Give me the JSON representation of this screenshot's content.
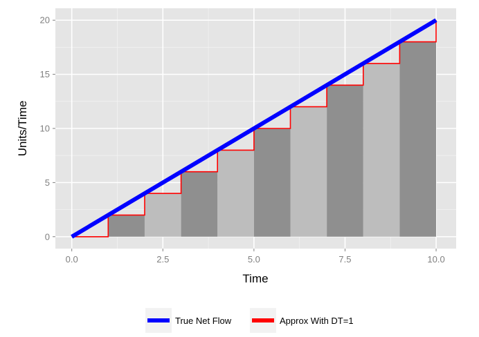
{
  "chart_data": {
    "type": "area",
    "xlabel": "Time",
    "ylabel": "Units/Time",
    "xlim": [
      -0.45,
      10.55
    ],
    "ylim": [
      -1.1,
      21.1
    ],
    "x_ticks": [
      {
        "value": 0,
        "label": "0.0"
      },
      {
        "value": 2.5,
        "label": "2.5"
      },
      {
        "value": 5,
        "label": "5.0"
      },
      {
        "value": 7.5,
        "label": "7.5"
      },
      {
        "value": 10,
        "label": "10.0"
      }
    ],
    "y_ticks": [
      {
        "value": 0,
        "label": "0"
      },
      {
        "value": 5,
        "label": "5"
      },
      {
        "value": 10,
        "label": "10"
      },
      {
        "value": 15,
        "label": "15"
      },
      {
        "value": 20,
        "label": "20"
      }
    ],
    "x_minor": [
      1.25,
      3.75,
      6.25,
      8.75
    ],
    "y_minor": [
      2.5,
      7.5,
      12.5,
      17.5
    ],
    "grid": true,
    "legend_position": "bottom",
    "bars": [
      {
        "x0": 1,
        "x1": 2,
        "value": 2,
        "shade": "dark"
      },
      {
        "x0": 2,
        "x1": 3,
        "value": 4,
        "shade": "light"
      },
      {
        "x0": 3,
        "x1": 4,
        "value": 6,
        "shade": "dark"
      },
      {
        "x0": 4,
        "x1": 5,
        "value": 8,
        "shade": "light"
      },
      {
        "x0": 5,
        "x1": 6,
        "value": 10,
        "shade": "dark"
      },
      {
        "x0": 6,
        "x1": 7,
        "value": 12,
        "shade": "light"
      },
      {
        "x0": 7,
        "x1": 8,
        "value": 14,
        "shade": "dark"
      },
      {
        "x0": 8,
        "x1": 9,
        "value": 16,
        "shade": "light"
      },
      {
        "x0": 9,
        "x1": 10,
        "value": 18,
        "shade": "dark"
      }
    ],
    "series": [
      {
        "name": "True Net Flow",
        "color": "#0000ff",
        "x": [
          0,
          10
        ],
        "y": [
          0,
          20
        ]
      },
      {
        "name": "Approx With DT=1",
        "color": "#ff0000",
        "step": true,
        "x": [
          0,
          1,
          1,
          2,
          2,
          3,
          3,
          4,
          4,
          5,
          5,
          6,
          6,
          7,
          7,
          8,
          8,
          9,
          9,
          10,
          10
        ],
        "y": [
          0,
          0,
          2,
          2,
          4,
          4,
          6,
          6,
          8,
          8,
          10,
          10,
          12,
          12,
          14,
          14,
          16,
          16,
          18,
          18,
          20
        ]
      }
    ],
    "colors": {
      "panel": "#e5e5e5",
      "grid_major": "#ffffff",
      "grid_minor": "#f2f2f2",
      "bar_dark": "#8f8f8f",
      "bar_light": "#bdbdbd",
      "legend_key_bg": "#f2f2f2"
    }
  }
}
